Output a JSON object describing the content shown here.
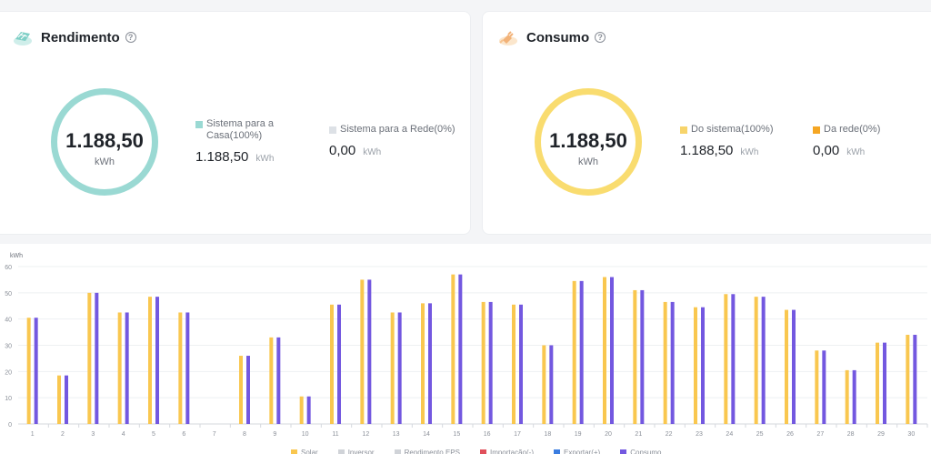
{
  "rendimento": {
    "title": "Rendimento",
    "help": "?",
    "total": "1.188,50",
    "unit": "kWh",
    "items": [
      {
        "label": "Sistema para a Casa(100%)",
        "value": "1.188,50",
        "unit": "kWh",
        "color": "#9ad9d3"
      },
      {
        "label": "Sistema para a Rede(0%)",
        "value": "0,00",
        "unit": "kWh",
        "color": "#dde1e6"
      }
    ]
  },
  "consumo": {
    "title": "Consumo",
    "help": "?",
    "total": "1.188,50",
    "unit": "kWh",
    "items": [
      {
        "label": "Do sistema(100%)",
        "value": "1.188,50",
        "unit": "kWh",
        "color": "#f7d46b"
      },
      {
        "label": "Da rede(0%)",
        "value": "0,00",
        "unit": "kWh",
        "color": "#f5a623"
      }
    ]
  },
  "chart_data": {
    "type": "bar",
    "ylabel": "kWh",
    "ylim": [
      0,
      60
    ],
    "yticks": [
      0,
      10,
      20,
      30,
      40,
      50,
      60
    ],
    "grid": true,
    "legend_position": "bottom",
    "categories": [
      "1",
      "2",
      "3",
      "4",
      "5",
      "6",
      "7",
      "8",
      "9",
      "10",
      "11",
      "12",
      "13",
      "14",
      "15",
      "16",
      "17",
      "18",
      "19",
      "20",
      "21",
      "22",
      "23",
      "24",
      "25",
      "26",
      "27",
      "28",
      "29",
      "30"
    ],
    "series": [
      {
        "name": "Solar",
        "color": "#f9c74f",
        "values": [
          40.5,
          18.5,
          50,
          42.5,
          48.5,
          42.5,
          0,
          26,
          33,
          10.5,
          45.5,
          55,
          42.5,
          46,
          57,
          46.5,
          45.5,
          30,
          54.5,
          56,
          51,
          46.5,
          44.5,
          49.5,
          48.5,
          43.5,
          28,
          20.5,
          31,
          34
        ]
      },
      {
        "name": "Consumo",
        "color": "#7358e0",
        "values": [
          40.5,
          18.5,
          50,
          42.5,
          48.5,
          42.5,
          0,
          26,
          33,
          10.5,
          45.5,
          55,
          42.5,
          46,
          57,
          46.5,
          45.5,
          30,
          54.5,
          56,
          51,
          46.5,
          44.5,
          49.5,
          48.5,
          43.5,
          28,
          20.5,
          31,
          34
        ]
      }
    ],
    "legend": [
      {
        "name": "Solar",
        "color": "#f9c74f"
      },
      {
        "name": "Inversor",
        "color": "#d0d3d8"
      },
      {
        "name": "Rendimento EPS",
        "color": "#d0d3d8"
      },
      {
        "name": "Importação(-)",
        "color": "#e0505b"
      },
      {
        "name": "Exportar(+)",
        "color": "#3a7de0"
      },
      {
        "name": "Consumo",
        "color": "#7358e0"
      }
    ]
  }
}
